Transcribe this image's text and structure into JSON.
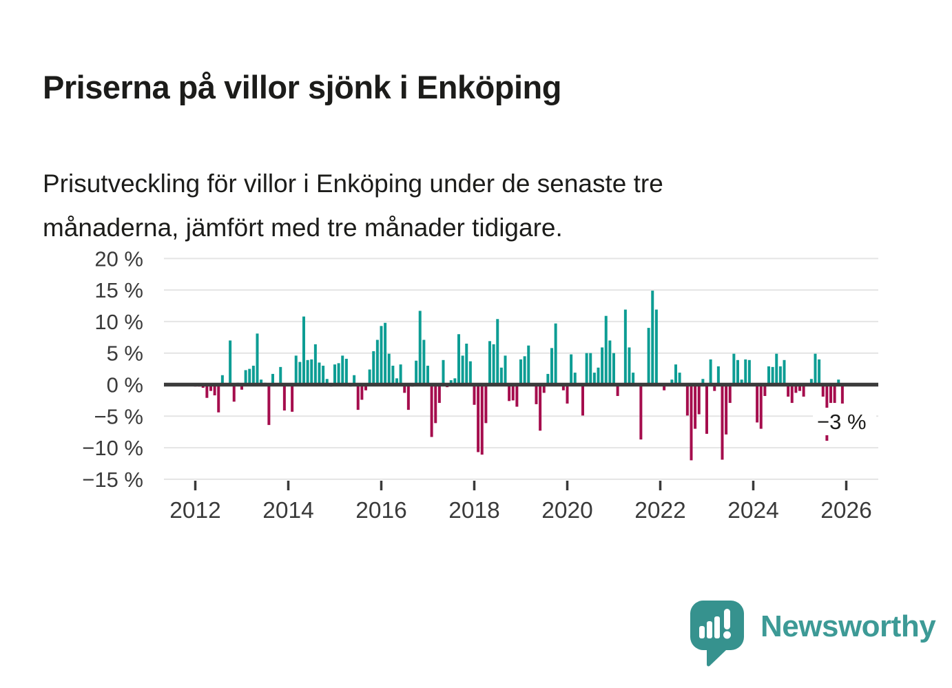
{
  "title": "Priserna på villor sjönk i Enköping",
  "subtitle_lines": [
    "Prisutveckling för villor i Enköping under de senaste tre",
    "månaderna, jämfört med tre månader tidigare."
  ],
  "logo": {
    "name": "Newsworthy"
  },
  "colors": {
    "positive_bar": "#0d9d94",
    "negative_bar": "#a50d4d",
    "axis": "#3b3b3b",
    "grid": "#e4e4e4",
    "tick_label": "#3a3a3a",
    "annotation_text": "#1c1c1a",
    "logo_teal": "#3d9a96",
    "logo_icon_teal": "#36928e"
  },
  "chart_data": {
    "type": "bar",
    "title": "Priserna på villor sjönk i Enköping",
    "unit": "%",
    "grid": true,
    "legend": "none",
    "ylim": [
      -15,
      20
    ],
    "y_ticks": [
      {
        "value": 20,
        "label": "20 %"
      },
      {
        "value": 15,
        "label": "15 %"
      },
      {
        "value": 10,
        "label": "10 %"
      },
      {
        "value": 5,
        "label": "5 %"
      },
      {
        "value": 0,
        "label": "0 %"
      },
      {
        "value": -5,
        "label": "−5 %"
      },
      {
        "value": -10,
        "label": "−10 %"
      },
      {
        "value": -15,
        "label": "−15 %"
      }
    ],
    "x_ticks": [
      "2012",
      "2014",
      "2016",
      "2018",
      "2020",
      "2022",
      "2024",
      "2026"
    ],
    "start_month": "2012-01",
    "frequency": "monthly",
    "values": [
      -0.3,
      -0.3,
      -0.5,
      -2.1,
      -1.0,
      -1.7,
      -4.4,
      1.5,
      0,
      7.0,
      -2.7,
      0.3,
      -0.8,
      2.3,
      2.5,
      3.0,
      8.1,
      0.8,
      0.3,
      -6.4,
      1.7,
      0,
      2.8,
      -4.1,
      0,
      -4.3,
      4.6,
      3.6,
      10.8,
      3.9,
      4.0,
      6.4,
      3.5,
      3.0,
      0.9,
      -0.3,
      3.2,
      3.4,
      4.6,
      4.1,
      -0.3,
      1.5,
      -4.0,
      -2.4,
      -0.9,
      2.4,
      5.3,
      7.1,
      9.3,
      9.8,
      4.9,
      3.0,
      1.0,
      3.2,
      -1.3,
      -4.0,
      -0.3,
      3.8,
      11.7,
      7.1,
      3.0,
      -8.3,
      -6.1,
      -2.9,
      3.9,
      -0.4,
      0.7,
      1.0,
      8.0,
      4.6,
      6.5,
      3.7,
      -3.2,
      -10.7,
      -11.1,
      -6.1,
      6.9,
      6.4,
      10.4,
      2.7,
      4.6,
      -2.6,
      -2.5,
      -3.5,
      4.0,
      4.5,
      6.2,
      0,
      -3.1,
      -7.3,
      -1.3,
      1.7,
      5.8,
      9.7,
      0,
      -0.9,
      -3.0,
      4.8,
      1.9,
      0,
      -4.9,
      5.0,
      5.0,
      1.9,
      2.7,
      5.9,
      10.9,
      7.0,
      5.0,
      -1.8,
      0,
      11.9,
      5.9,
      1.9,
      0,
      -8.7,
      0,
      9.0,
      14.9,
      11.9,
      0,
      -0.9,
      0,
      0.8,
      3.2,
      1.9,
      0,
      -4.9,
      -12.0,
      -7.0,
      -4.7,
      0.9,
      -7.8,
      4.0,
      -1.0,
      2.9,
      -11.9,
      -7.9,
      -2.9,
      4.9,
      3.9,
      0.8,
      4.0,
      3.9,
      0,
      -6.0,
      -7.0,
      -1.8,
      2.9,
      2.8,
      4.9,
      2.9,
      3.9,
      -1.9,
      -2.9,
      -1.3,
      -1.0,
      -1.9,
      0,
      0.9,
      4.9,
      4.0,
      -1.9,
      -8.9,
      -2.9,
      -2.9,
      0.8,
      -3.0
    ],
    "annotation": {
      "text": "−3 %",
      "target_month": "2025-12",
      "value": -3
    }
  }
}
